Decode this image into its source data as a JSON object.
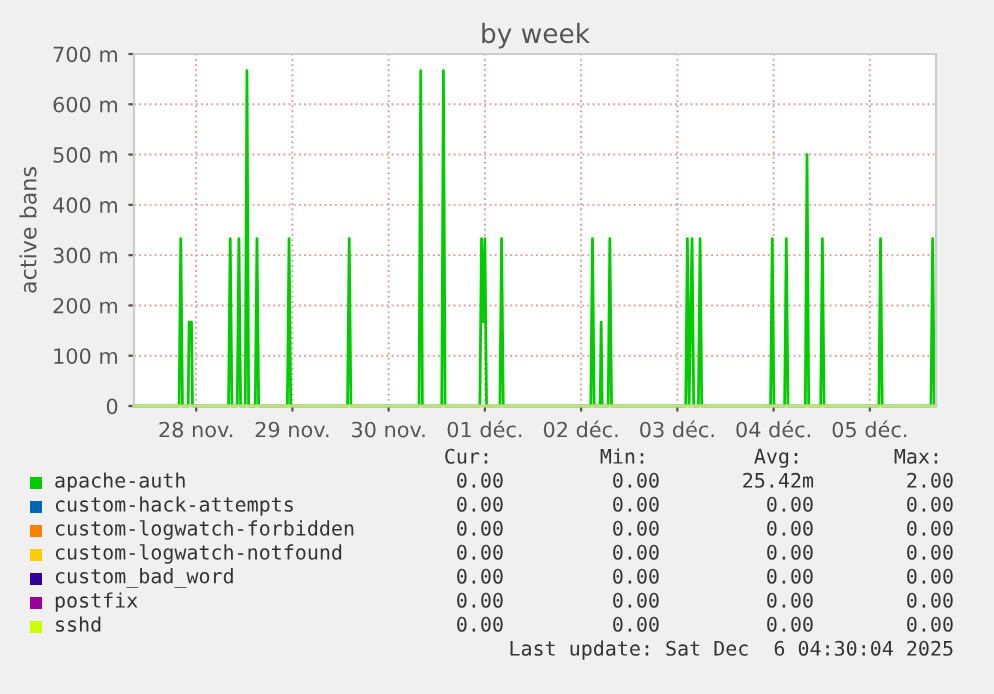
{
  "chart_data": {
    "type": "line",
    "title": "by week",
    "ylabel": "active bans",
    "xlim": [
      "2025-11-27T20:30",
      "2025-12-06T04:30"
    ],
    "xticks": [
      {
        "value": "2025-11-28T12:00",
        "label": "28 nov."
      },
      {
        "value": "2025-11-29T12:00",
        "label": "29 nov."
      },
      {
        "value": "2025-11-30T12:00",
        "label": "30 nov."
      },
      {
        "value": "2025-12-01T12:00",
        "label": "01 déc."
      },
      {
        "value": "2025-12-02T12:00",
        "label": "02 déc."
      },
      {
        "value": "2025-12-03T12:00",
        "label": "03 déc."
      },
      {
        "value": "2025-12-04T12:00",
        "label": "04 déc."
      },
      {
        "value": "2025-12-05T12:00",
        "label": "05 déc."
      }
    ],
    "ylim": [
      0,
      700
    ],
    "yticks": [
      0,
      {
        "value": 100,
        "label": "100 m"
      },
      {
        "value": 200,
        "label": "200 m"
      },
      {
        "value": 300,
        "label": "300 m"
      },
      {
        "value": 400,
        "label": "400 m"
      },
      {
        "value": 500,
        "label": "500 m"
      },
      {
        "value": 600,
        "label": "600 m"
      },
      {
        "value": 700,
        "label": "700 m"
      }
    ],
    "grid": true,
    "legend": "bottom",
    "marker": "none",
    "line_style": "solid",
    "series": [
      {
        "name": "apache-auth",
        "color": "#00cc00",
        "x": [
          "2025-11-27T20:30",
          "2025-11-28T07:45",
          "2025-11-28T08:10",
          "2025-11-28T08:35",
          "2025-11-28T10:00",
          "2025-11-28T10:15",
          "2025-11-28T10:50",
          "2025-11-28T11:05",
          "2025-11-28T20:05",
          "2025-11-28T20:30",
          "2025-11-28T20:55",
          "2025-11-28T22:15",
          "2025-11-28T22:40",
          "2025-11-28T23:05",
          "2025-11-29T00:15",
          "2025-11-29T00:40",
          "2025-11-29T01:05",
          "2025-11-29T02:45",
          "2025-11-29T03:10",
          "2025-11-29T03:35",
          "2025-11-29T10:45",
          "2025-11-29T11:10",
          "2025-11-29T11:35",
          "2025-11-30T01:45",
          "2025-11-30T02:10",
          "2025-11-30T02:35",
          "2025-11-30T19:35",
          "2025-11-30T20:00",
          "2025-11-30T20:25",
          "2025-12-01T01:15",
          "2025-12-01T01:40",
          "2025-12-01T02:05",
          "2025-12-01T10:45",
          "2025-12-01T11:10",
          "2025-12-01T11:35",
          "2025-12-01T12:00",
          "2025-12-01T12:25",
          "2025-12-01T15:45",
          "2025-12-01T16:10",
          "2025-12-01T16:35",
          "2025-12-02T14:25",
          "2025-12-02T14:50",
          "2025-12-02T15:15",
          "2025-12-02T16:45",
          "2025-12-02T17:00",
          "2025-12-02T17:15",
          "2025-12-02T18:45",
          "2025-12-02T19:10",
          "2025-12-02T19:35",
          "2025-12-03T14:05",
          "2025-12-03T14:30",
          "2025-12-03T14:55",
          "2025-12-03T15:40",
          "2025-12-03T16:05",
          "2025-12-03T17:15",
          "2025-12-03T17:40",
          "2025-12-03T18:05",
          "2025-12-04T11:15",
          "2025-12-04T11:40",
          "2025-12-04T12:05",
          "2025-12-04T14:45",
          "2025-12-04T15:10",
          "2025-12-04T15:35",
          "2025-12-04T19:55",
          "2025-12-04T20:20",
          "2025-12-04T20:45",
          "2025-12-04T23:45",
          "2025-12-05T00:10",
          "2025-12-05T00:35",
          "2025-12-05T14:15",
          "2025-12-05T14:40",
          "2025-12-05T15:05",
          "2025-12-06T03:15",
          "2025-12-06T03:40",
          "2025-12-06T04:05"
        ],
        "values": [
          0,
          0,
          333,
          0,
          0,
          167,
          167,
          0,
          0,
          333,
          0,
          0,
          333,
          0,
          0,
          667,
          0,
          0,
          333,
          0,
          0,
          333,
          0,
          0,
          333,
          0,
          0,
          667,
          0,
          0,
          667,
          0,
          0,
          333,
          167,
          333,
          0,
          0,
          333,
          0,
          0,
          333,
          0,
          0,
          167,
          0,
          0,
          333,
          0,
          0,
          333,
          0,
          333,
          0,
          0,
          333,
          0,
          0,
          333,
          0,
          0,
          333,
          0,
          0,
          500,
          0,
          0,
          333,
          0,
          0,
          333,
          0,
          0,
          333,
          0
        ]
      },
      {
        "name": "custom-hack-attempts",
        "color": "#0066b3"
      },
      {
        "name": "custom-logwatch-forbidden",
        "color": "#ff8000"
      },
      {
        "name": "custom-logwatch-notfound",
        "color": "#ffcc00"
      },
      {
        "name": "custom_bad_word",
        "color": "#330099"
      },
      {
        "name": "postfix",
        "color": "#990099"
      },
      {
        "name": "sshd",
        "color": "#ccff00",
        "x": [
          "2025-11-27T20:30",
          "2025-12-06T04:30"
        ],
        "values": [
          0,
          0
        ]
      }
    ],
    "annotations": [
      "Cur:",
      "Min:",
      "Avg:",
      "Max:",
      "0.00",
      "0.00",
      "25.42m",
      "2.00",
      "0.00",
      "0.00",
      "0.00",
      "0.00",
      "0.00",
      "0.00",
      "0.00",
      "0.00",
      "0.00",
      "0.00",
      "0.00",
      "0.00",
      "0.00",
      "0.00",
      "0.00",
      "0.00",
      "0.00",
      "0.00",
      "0.00",
      "0.00",
      "0.00",
      "0.00",
      "0.00",
      "0.00",
      "Last update: Sat Dec  6 04:30:04 2025"
    ]
  }
}
